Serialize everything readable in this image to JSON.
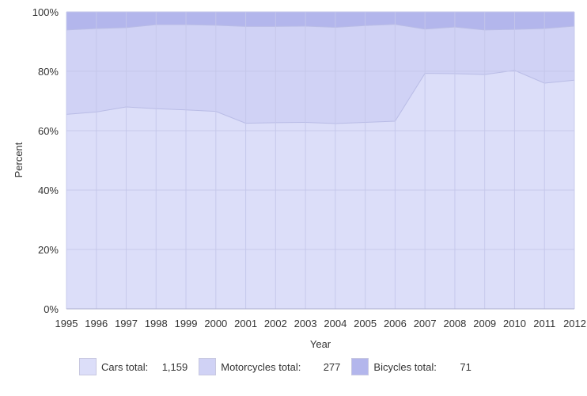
{
  "chart_data": {
    "type": "area",
    "stacked": "percent",
    "xlabel": "Year",
    "ylabel": "Percent",
    "x": [
      "1995",
      "1996",
      "1997",
      "1998",
      "1999",
      "2000",
      "2001",
      "2002",
      "2003",
      "2004",
      "2005",
      "2006",
      "2007",
      "2008",
      "2009",
      "2010",
      "2011",
      "2012"
    ],
    "ylim": [
      0,
      100
    ],
    "yticks": [
      "0%",
      "20%",
      "40%",
      "60%",
      "80%",
      "100%"
    ],
    "grid": true,
    "legend_position": "bottom",
    "series": [
      {
        "name": "Cars total:",
        "total": "1,159",
        "color": "#dcdef9",
        "values": [
          65.5,
          66.3,
          68.0,
          67.4,
          67.0,
          66.5,
          62.5,
          62.7,
          62.8,
          62.4,
          62.8,
          63.2,
          79.3,
          79.2,
          78.9,
          80.3,
          76.0,
          77.0
        ]
      },
      {
        "name": "Motorcycles total:",
        "total": "277",
        "color": "#d0d2f5",
        "values": [
          28.4,
          28.1,
          26.7,
          28.3,
          28.7,
          29.0,
          32.6,
          32.4,
          32.4,
          32.4,
          32.6,
          32.6,
          14.9,
          15.7,
          15.0,
          13.8,
          18.4,
          18.2
        ]
      },
      {
        "name": "Bicycles total:",
        "total": "71",
        "color": "#b3b6ec",
        "values": [
          6.1,
          5.6,
          5.3,
          4.3,
          4.3,
          4.5,
          4.9,
          4.9,
          4.8,
          5.2,
          4.6,
          4.2,
          5.8,
          5.1,
          6.1,
          5.9,
          5.6,
          4.8
        ]
      }
    ]
  }
}
